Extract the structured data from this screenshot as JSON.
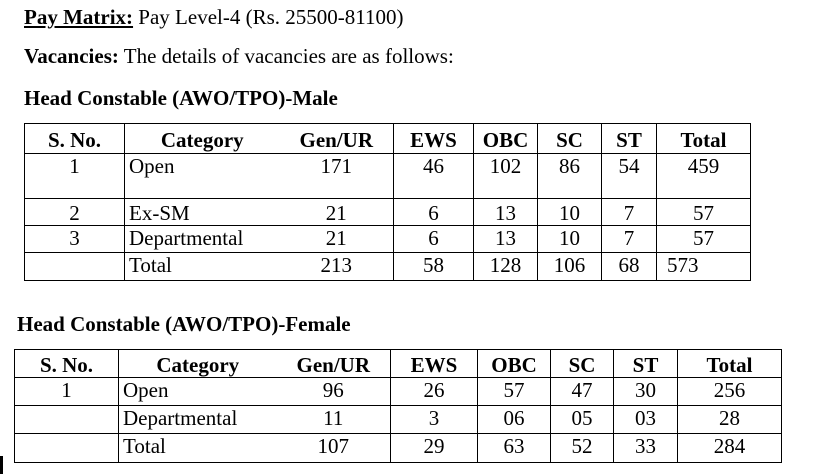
{
  "header": {
    "pay_label": "Pay Matrix:",
    "pay_text": " Pay Level-4 (Rs. 25500-81100)",
    "vac_label": "Vacancies:",
    "vac_text": " The details of vacancies are as follows:"
  },
  "male": {
    "title": "Head Constable (AWO/TPO)-Male",
    "headers": [
      "S. No.",
      "Category",
      "Gen/UR",
      "EWS",
      "OBC",
      "SC",
      "ST",
      "Total"
    ],
    "rows": [
      [
        "1",
        "Open",
        "171",
        "46",
        "102",
        "86",
        "54",
        "459"
      ],
      [
        "2",
        "Ex-SM",
        "21",
        "6",
        "13",
        "10",
        "7",
        "57"
      ],
      [
        "3",
        "Departmental",
        "21",
        "6",
        "13",
        "10",
        "7",
        "57"
      ],
      [
        "",
        "Total",
        "213",
        "58",
        "128",
        "106",
        "68",
        "573"
      ]
    ]
  },
  "female": {
    "title": "Head Constable (AWO/TPO)-Female",
    "headers": [
      "S. No.",
      "Category",
      "Gen/UR",
      "EWS",
      "OBC",
      "SC",
      "ST",
      "Total"
    ],
    "rows": [
      [
        "1",
        "Open",
        "96",
        "26",
        "57",
        "47",
        "30",
        "256"
      ],
      [
        "",
        "Departmental",
        "11",
        "3",
        "06",
        "05",
        "03",
        "28"
      ],
      [
        "",
        "Total",
        "107",
        "29",
        "63",
        "52",
        "33",
        "284"
      ]
    ]
  }
}
